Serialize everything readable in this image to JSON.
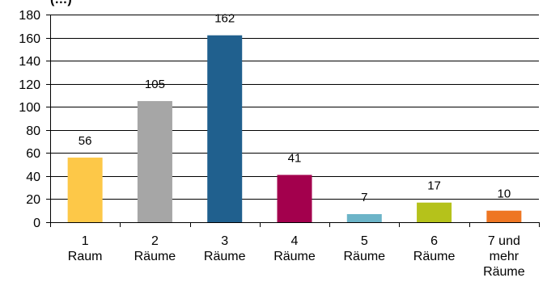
{
  "chart_data": {
    "type": "bar",
    "title": "(…)",
    "categories": [
      [
        "1",
        "Raum"
      ],
      [
        "2",
        "Räume"
      ],
      [
        "3",
        "Räume"
      ],
      [
        "4",
        "Räume"
      ],
      [
        "5",
        "Räume"
      ],
      [
        "6",
        "Räume"
      ],
      [
        "7 und",
        "mehr",
        "Räume"
      ]
    ],
    "values": [
      56,
      105,
      162,
      41,
      7,
      17,
      10
    ],
    "bar_colors": [
      "#FDC848",
      "#A6A6A6",
      "#20608E",
      "#A3004D",
      "#6CB4C8",
      "#B5C21B",
      "#EE7623"
    ],
    "ylim": [
      0,
      180
    ],
    "yticks": [
      0,
      20,
      40,
      60,
      80,
      100,
      120,
      140,
      160,
      180
    ],
    "grid": true,
    "xlabel": "",
    "ylabel": "",
    "legend": "none"
  }
}
